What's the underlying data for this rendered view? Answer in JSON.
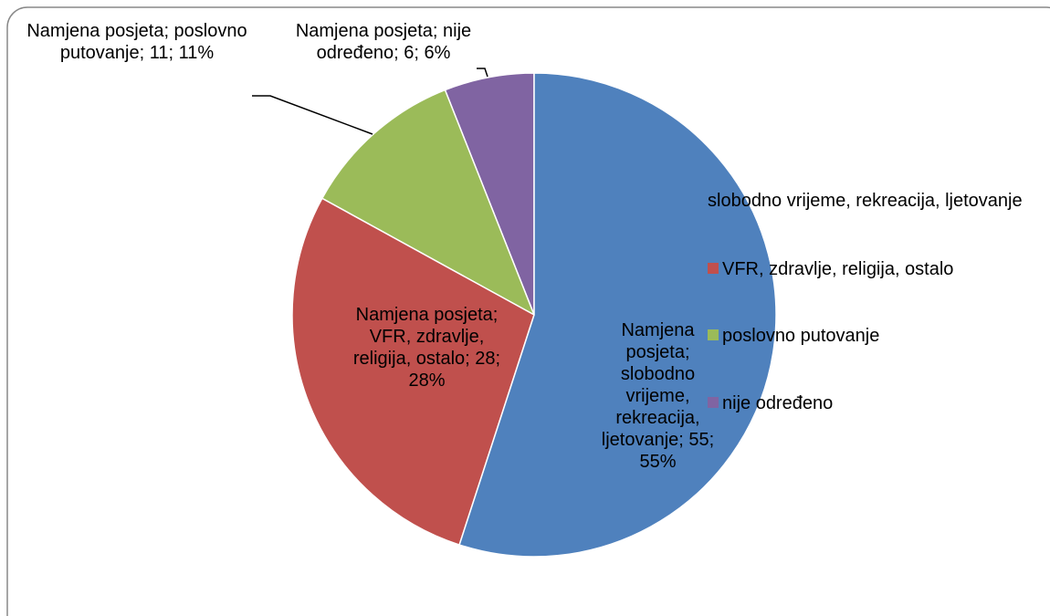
{
  "chart_data": {
    "type": "pie",
    "series_name": "Namjena posjeta",
    "categories": [
      "slobodno vrijeme, rekreacija, ljetovanje",
      "VFR, zdravlje, religija, ostalo",
      "poslovno putovanje",
      "nije određeno"
    ],
    "values": [
      55,
      28,
      11,
      6
    ],
    "value_labels": [
      "Namjena posjeta; slobodno vrijeme, rekreacija, ljetovanje; 55; 55%",
      "Namjena posjeta; VFR, zdravlje, religija, ostalo; 28; 28%",
      "Namjena posjeta; poslovno putovanje; 11; 11%",
      "Namjena posjeta; nije određeno; 6; 6%"
    ],
    "colors": [
      "#4f81bd",
      "#c0504d",
      "#9bbb59",
      "#8064a2"
    ],
    "legend": "right"
  }
}
